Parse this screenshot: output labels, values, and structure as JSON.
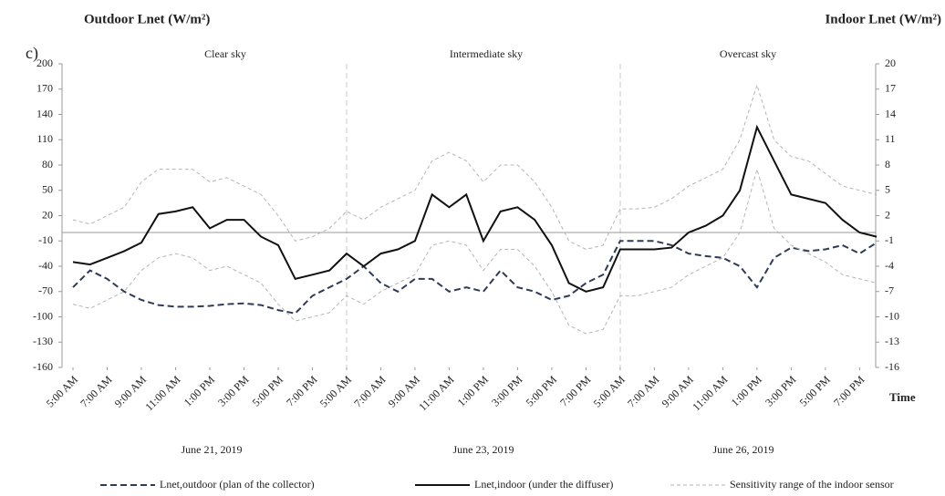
{
  "chart_data": {
    "type": "line",
    "panel_label": "c)",
    "y_label": "Outdoor Lnet (W/m²)",
    "y2_label": "Indoor Lnet (W/m²)",
    "x_label": "Time",
    "annotations": [
      "Clear sky",
      "Intermediate sky",
      "Overcast sky"
    ],
    "day_labels": [
      "June 21, 2019",
      "June 23, 2019",
      "June 26, 2019"
    ],
    "zero_line": true,
    "xlim": [
      -0.32,
      23.47
    ],
    "xticks": [
      {
        "value": 0,
        "label": "5:00 AM"
      },
      {
        "value": 1,
        "label": "7:00 AM"
      },
      {
        "value": 2,
        "label": "9:00 AM"
      },
      {
        "value": 3,
        "label": "11:00 AM"
      },
      {
        "value": 4,
        "label": "1:00 PM"
      },
      {
        "value": 5,
        "label": "3:00 PM"
      },
      {
        "value": 6,
        "label": "5:00 PM"
      },
      {
        "value": 7,
        "label": "7:00 PM"
      },
      {
        "value": 8,
        "label": "5:00 AM"
      },
      {
        "value": 9,
        "label": "7:00 AM"
      },
      {
        "value": 10,
        "label": "9:00 AM"
      },
      {
        "value": 11,
        "label": "11:00 AM"
      },
      {
        "value": 12,
        "label": "1:00 PM"
      },
      {
        "value": 13,
        "label": "3:00 PM"
      },
      {
        "value": 14,
        "label": "5:00 PM"
      },
      {
        "value": 15,
        "label": "7:00 PM"
      },
      {
        "value": 16,
        "label": "5:00 AM"
      },
      {
        "value": 17,
        "label": "7:00 AM"
      },
      {
        "value": 18,
        "label": "9:00 AM"
      },
      {
        "value": 19,
        "label": "11:00 AM"
      },
      {
        "value": 20,
        "label": "1:00 PM"
      },
      {
        "value": 21,
        "label": "3:00 PM"
      },
      {
        "value": 22,
        "label": "5:00 PM"
      },
      {
        "value": 23,
        "label": "7:00 PM"
      }
    ],
    "ylim": [
      -160,
      200
    ],
    "yticks": [
      200,
      170,
      140,
      110,
      80,
      50,
      20,
      -10,
      -40,
      -70,
      -100,
      -130,
      -160
    ],
    "y2lim": [
      -16,
      20
    ],
    "y2ticks": [
      20,
      17,
      14,
      11,
      8,
      5,
      2,
      -1,
      -4,
      -7,
      -10,
      -13,
      -16
    ],
    "x": [
      0,
      0.5,
      1,
      1.5,
      2,
      2.5,
      3,
      3.5,
      4,
      4.5,
      5,
      5.5,
      6,
      6.5,
      7,
      7.5,
      8,
      8.5,
      9,
      9.5,
      10,
      10.5,
      11,
      11.5,
      12,
      12.5,
      13,
      13.5,
      14,
      14.5,
      15,
      15.5,
      16,
      16.5,
      17,
      17.5,
      18,
      18.5,
      19,
      19.5,
      20,
      20.5,
      21,
      21.5,
      22,
      22.5,
      23,
      23.5
    ],
    "series": [
      {
        "name": "Lnet,outdoor (plan of the collector)",
        "color": "#2f3b56",
        "line_style": "dashed",
        "axis": "y",
        "values": [
          -65,
          -45,
          -55,
          -70,
          -80,
          -86,
          -88,
          -88,
          -87,
          -85,
          -84,
          -86,
          -92,
          -96,
          -75,
          -65,
          -55,
          -40,
          -60,
          -70,
          -55,
          -55,
          -70,
          -65,
          -70,
          -45,
          -65,
          -70,
          -80,
          -75,
          -60,
          -50,
          -10,
          -10,
          -10,
          -15,
          -25,
          -28,
          -30,
          -40,
          -65,
          -30,
          -18,
          -22,
          -20,
          -15,
          -25,
          -12
        ]
      },
      {
        "name": "Lnet,indoor (under the diffuser)",
        "color": "#111111",
        "line_style": "solid",
        "axis": "y2",
        "values": [
          -3.5,
          -3.8,
          -3,
          -2.2,
          -1.2,
          2.2,
          2.5,
          3,
          0.5,
          1.5,
          1.5,
          -0.5,
          -1.5,
          -5.5,
          -5,
          -4.5,
          -2.5,
          -4,
          -2.5,
          -2,
          -1,
          4.5,
          3,
          4.5,
          -1,
          2.5,
          3,
          1.5,
          -1.5,
          -6,
          -7,
          -6.5,
          -2,
          -2,
          -2,
          -1.8,
          0,
          0.8,
          2,
          5,
          12.5,
          8.5,
          4.5,
          4,
          3.5,
          1.5,
          0,
          -0.5
        ]
      },
      {
        "name": "Sensitivity range of the indoor sensor",
        "color": "#b5b5b5",
        "line_style": "dashed",
        "axis": "y2",
        "upper": [
          1.5,
          1,
          2,
          3,
          6,
          7.5,
          7.5,
          7.5,
          6,
          6.5,
          5.5,
          4.5,
          2,
          -1,
          -0.5,
          0.5,
          2.5,
          1.5,
          3,
          4,
          5,
          8.5,
          9.5,
          8.5,
          6,
          8,
          8,
          6,
          3,
          -1,
          -2,
          -1.5,
          2.8,
          2.8,
          3,
          4,
          5.5,
          6.5,
          7.5,
          11,
          17.5,
          11,
          9,
          8.5,
          7,
          5.5,
          5,
          4.5
        ],
        "lower": [
          -8.5,
          -9,
          -8,
          -7,
          -4.5,
          -3,
          -2.5,
          -3,
          -4.5,
          -4,
          -5,
          -6,
          -8.5,
          -10.5,
          -10,
          -9.5,
          -7.5,
          -8.5,
          -7,
          -6,
          -5,
          -1.5,
          -1,
          -1.5,
          -4.5,
          -2,
          -2,
          -4,
          -7,
          -11,
          -12,
          -11.5,
          -7.5,
          -7.5,
          -7,
          -6.5,
          -5,
          -4,
          -3,
          0,
          7.5,
          0.5,
          -1.5,
          -2.5,
          -3.5,
          -5,
          -5.5,
          -6
        ]
      }
    ]
  }
}
